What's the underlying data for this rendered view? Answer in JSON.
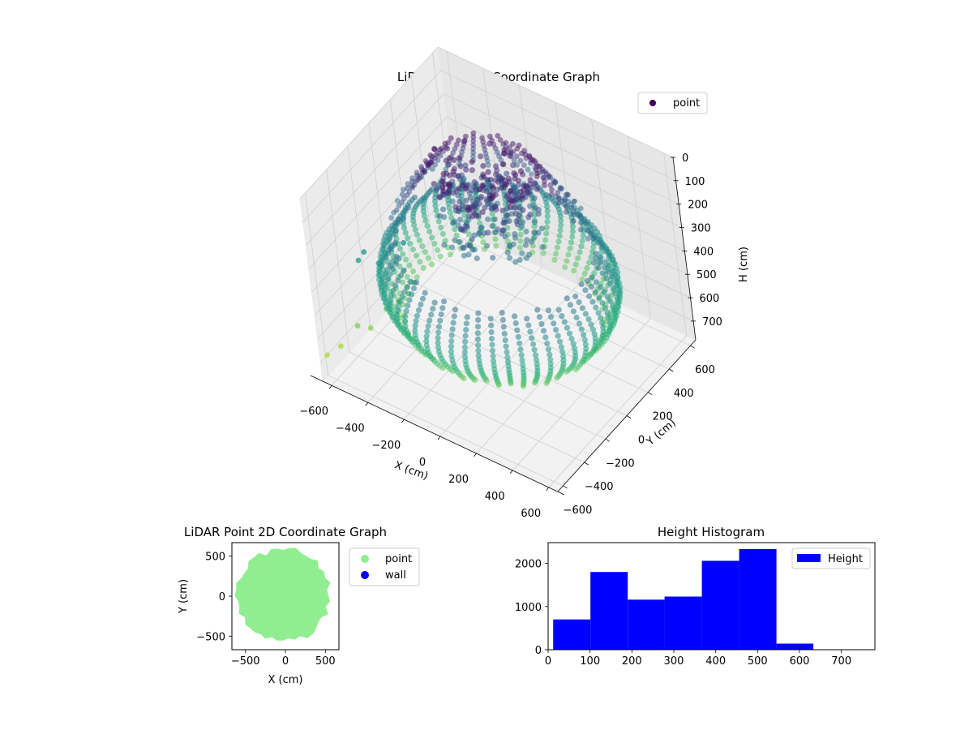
{
  "chart_data": [
    {
      "type": "scatter",
      "projection": "3d",
      "title": "LiDAR Point 3D Coordinate Graph",
      "xlabel": "X (cm)",
      "ylabel": "Y (cm)",
      "zlabel": "H (cm)",
      "xlim": [
        -650,
        650
      ],
      "ylim": [
        -650,
        650
      ],
      "zlim": [
        780,
        0
      ],
      "z_inverted": true,
      "xticks": [
        -600,
        -400,
        -200,
        0,
        200,
        400,
        600
      ],
      "yticks": [
        -600,
        -400,
        -200,
        0,
        200,
        400,
        600
      ],
      "zticks": [
        0,
        100,
        200,
        300,
        400,
        500,
        600,
        700
      ],
      "xtick_labels": [
        "−600",
        "−400",
        "−200",
        "0",
        "200",
        "400",
        "600"
      ],
      "ytick_labels": [
        "−600",
        "−400",
        "−200",
        "0",
        "200",
        "400",
        "600"
      ],
      "ztick_labels": [
        "0",
        "100",
        "200",
        "300",
        "400",
        "500",
        "600",
        "700"
      ],
      "colormap": "viridis",
      "legend": {
        "placement": "top-right",
        "entries": [
          {
            "label": "point",
            "color": "#440154"
          }
        ]
      },
      "structure": {
        "ring_radius": 530,
        "slices": 52,
        "slice_height_range": [
          330,
          580
        ],
        "interior_cluster_radius": 260,
        "interior_height_range": [
          30,
          330
        ],
        "outlier_points": [
          {
            "x": -640,
            "y": -600,
            "z": 690
          },
          {
            "x": -610,
            "y": -520,
            "z": 680
          },
          {
            "x": -560,
            "y": -430,
            "z": 620
          },
          {
            "x": -520,
            "y": -380,
            "z": 640
          },
          {
            "x": -470,
            "y": -300,
            "z": 580
          },
          {
            "x": -430,
            "y": -250,
            "z": 560
          },
          {
            "x": -400,
            "y": -200,
            "z": 540
          },
          {
            "x": -380,
            "y": -170,
            "z": 500
          },
          {
            "x": -600,
            "y": -300,
            "z": 420
          },
          {
            "x": -590,
            "y": -260,
            "z": 400
          },
          {
            "x": -540,
            "y": -220,
            "z": 450
          },
          {
            "x": -450,
            "y": -120,
            "z": 380
          }
        ]
      }
    },
    {
      "type": "scatter",
      "title": "LiDAR Point 2D Coordinate Graph",
      "xlabel": "X (cm)",
      "ylabel": "Y (cm)",
      "xlim": [
        -670,
        670
      ],
      "ylim": [
        -670,
        670
      ],
      "xticks": [
        -500,
        0,
        500
      ],
      "yticks": [
        -500,
        0,
        500
      ],
      "xtick_labels": [
        "−500",
        "0",
        "500"
      ],
      "ytick_labels": [
        "−500",
        "0",
        "500"
      ],
      "legend": {
        "placement": "outside-right",
        "entries": [
          {
            "label": "point",
            "color": "#90ee90"
          },
          {
            "label": "wall",
            "color": "#0000ff"
          }
        ]
      },
      "series": [
        {
          "name": "point",
          "color": "#90ee90",
          "shape": "filled-disk",
          "radius_range": [
            540,
            620
          ]
        },
        {
          "name": "wall",
          "color": "#0000ff",
          "points": []
        }
      ]
    },
    {
      "type": "bar",
      "subtype": "histogram",
      "title": "Height Histogram",
      "xlabel": "",
      "ylabel": "",
      "xlim": [
        0,
        780
      ],
      "ylim": [
        0,
        2480
      ],
      "xticks": [
        0,
        100,
        200,
        300,
        400,
        500,
        600,
        700
      ],
      "yticks": [
        0,
        1000,
        2000
      ],
      "xtick_labels": [
        "0",
        "100",
        "200",
        "300",
        "400",
        "500",
        "600",
        "700"
      ],
      "ytick_labels": [
        "0",
        "1000",
        "2000"
      ],
      "bin_edges": [
        12,
        101,
        190,
        278,
        367,
        456,
        545,
        633
      ],
      "values": [
        700,
        1800,
        1160,
        1230,
        2060,
        2330,
        140
      ],
      "color": "#0000ff",
      "legend": {
        "placement": "top-right",
        "entries": [
          {
            "label": "Height",
            "color": "#0000ff"
          }
        ]
      }
    }
  ]
}
